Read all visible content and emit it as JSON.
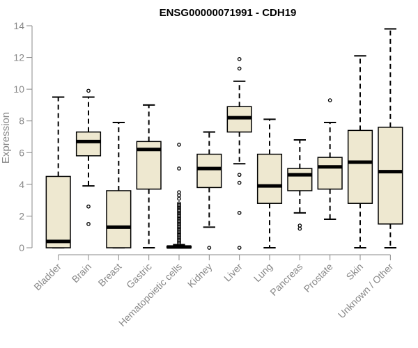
{
  "chart_data": {
    "type": "boxplot",
    "title": "ENSG00000071991 - CDH19",
    "ylabel": "Expression",
    "xlabel": "",
    "ylim": [
      0,
      14
    ],
    "yticks": [
      0,
      2,
      4,
      6,
      8,
      10,
      12,
      14
    ],
    "grid": false,
    "legend": "none",
    "box_fill": "#EEE8D0",
    "axis_color": "#888888",
    "categories": [
      "Bladder",
      "Brain",
      "Breast",
      "Gastric",
      "Hematopoietic cells",
      "Kidney",
      "Liver",
      "Lung",
      "Pancreas",
      "Prostate",
      "Skin",
      "Unknown / Other"
    ],
    "boxes": [
      {
        "name": "Bladder",
        "whisker_low": 0,
        "q1": 0.0,
        "median": 0.4,
        "q3": 4.5,
        "whisker_high": 9.5,
        "outliers": []
      },
      {
        "name": "Brain",
        "whisker_low": 3.9,
        "q1": 5.8,
        "median": 6.7,
        "q3": 7.3,
        "whisker_high": 9.5,
        "outliers": [
          1.5,
          2.6,
          9.9
        ]
      },
      {
        "name": "Breast",
        "whisker_low": 0,
        "q1": 0.0,
        "median": 1.3,
        "q3": 3.6,
        "whisker_high": 7.9,
        "outliers": []
      },
      {
        "name": "Gastric",
        "whisker_low": 0,
        "q1": 3.7,
        "median": 6.2,
        "q3": 6.7,
        "whisker_high": 9.0,
        "outliers": []
      },
      {
        "name": "Hematopoietic cells",
        "whisker_low": 0,
        "q1": 0.0,
        "median": 0.05,
        "q3": 0.1,
        "whisker_high": 0.2,
        "outliers": [
          0.3,
          0.4,
          0.5,
          0.6,
          0.7,
          0.8,
          0.9,
          1.0,
          1.1,
          1.2,
          1.3,
          1.4,
          1.5,
          1.6,
          1.7,
          1.8,
          1.9,
          2.0,
          2.1,
          2.2,
          2.3,
          2.4,
          2.5,
          2.6,
          2.7,
          2.8,
          3.1,
          3.3,
          3.5,
          5.0,
          6.5
        ]
      },
      {
        "name": "Kidney",
        "whisker_low": 1.3,
        "q1": 3.8,
        "median": 5.0,
        "q3": 5.9,
        "whisker_high": 7.3,
        "outliers": [
          0.0
        ]
      },
      {
        "name": "Liver",
        "whisker_low": 5.3,
        "q1": 7.3,
        "median": 8.2,
        "q3": 8.9,
        "whisker_high": 10.5,
        "outliers": [
          0.0,
          2.2,
          4.1,
          4.6,
          11.3,
          11.9
        ]
      },
      {
        "name": "Lung",
        "whisker_low": 0,
        "q1": 2.8,
        "median": 3.9,
        "q3": 5.9,
        "whisker_high": 8.1,
        "outliers": []
      },
      {
        "name": "Pancreas",
        "whisker_low": 2.2,
        "q1": 3.6,
        "median": 4.6,
        "q3": 5.0,
        "whisker_high": 6.8,
        "outliers": [
          1.2,
          1.4
        ]
      },
      {
        "name": "Prostate",
        "whisker_low": 1.8,
        "q1": 3.7,
        "median": 5.1,
        "q3": 5.7,
        "whisker_high": 7.9,
        "outliers": [
          9.3
        ]
      },
      {
        "name": "Skin",
        "whisker_low": 0,
        "q1": 2.8,
        "median": 5.4,
        "q3": 7.4,
        "whisker_high": 12.1,
        "outliers": []
      },
      {
        "name": "Unknown / Other",
        "whisker_low": 0,
        "q1": 1.5,
        "median": 4.8,
        "q3": 7.6,
        "whisker_high": 13.8,
        "outliers": []
      }
    ]
  }
}
